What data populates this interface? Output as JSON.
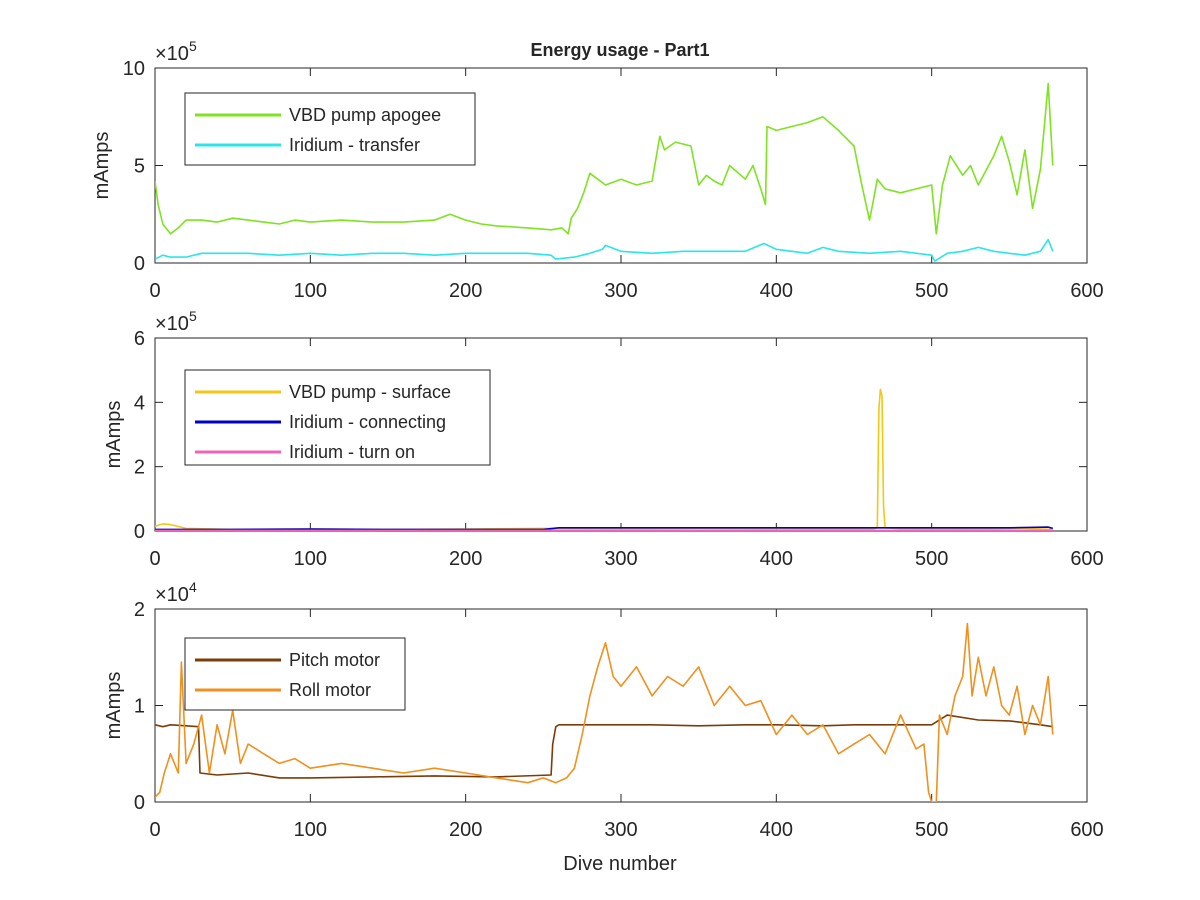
{
  "figure": {
    "title": "Energy usage - Part1",
    "xlabel": "Dive number"
  },
  "chart_data": [
    {
      "type": "line",
      "title": "Energy usage - Part1",
      "xlabel": "",
      "ylabel": "mAmps",
      "xlim": [
        0,
        600
      ],
      "ylim": [
        0,
        10
      ],
      "y_exponent_label": "×10",
      "y_exponent": "5",
      "xticks": [
        "0",
        "100",
        "200",
        "300",
        "400",
        "500",
        "600"
      ],
      "yticks": [
        "0",
        "5",
        "10"
      ],
      "legend_position": "top-left",
      "grid": false,
      "series": [
        {
          "name": "VBD pump apogee",
          "color": "#7ee320",
          "x": [
            0,
            2,
            5,
            10,
            15,
            20,
            30,
            40,
            50,
            60,
            70,
            80,
            90,
            100,
            120,
            140,
            160,
            180,
            190,
            200,
            210,
            220,
            240,
            255,
            262,
            266,
            268,
            272,
            276,
            280,
            290,
            300,
            310,
            320,
            325,
            328,
            335,
            345,
            350,
            355,
            360,
            365,
            370,
            380,
            385,
            390,
            393,
            394,
            400,
            410,
            420,
            430,
            440,
            450,
            455,
            460,
            462,
            465,
            470,
            480,
            490,
            500,
            503,
            507,
            512,
            520,
            525,
            530,
            540,
            545,
            550,
            555,
            560,
            565,
            570,
            575,
            578
          ],
          "y": [
            4.2,
            3.0,
            2.0,
            1.5,
            1.8,
            2.2,
            2.2,
            2.1,
            2.3,
            2.2,
            2.1,
            2.0,
            2.2,
            2.1,
            2.2,
            2.1,
            2.1,
            2.2,
            2.5,
            2.2,
            2.0,
            1.9,
            1.8,
            1.7,
            1.8,
            1.5,
            2.3,
            2.8,
            3.6,
            4.6,
            4.0,
            4.3,
            4.0,
            4.2,
            6.5,
            5.8,
            6.2,
            6.0,
            4.0,
            4.5,
            4.2,
            4.0,
            5.0,
            4.3,
            5.0,
            3.8,
            3.0,
            7.0,
            6.8,
            7.0,
            7.2,
            7.5,
            6.8,
            6.0,
            4.0,
            2.2,
            3.0,
            4.3,
            3.8,
            3.6,
            3.8,
            4.0,
            1.5,
            4.0,
            5.5,
            4.5,
            5.0,
            4.0,
            5.5,
            6.5,
            5.2,
            3.5,
            5.8,
            2.8,
            4.8,
            9.2,
            5.0
          ]
        },
        {
          "name": "Iridium - transfer",
          "color": "#2ae6e6",
          "x": [
            0,
            5,
            10,
            20,
            30,
            40,
            60,
            80,
            100,
            120,
            140,
            160,
            180,
            200,
            220,
            240,
            255,
            258,
            270,
            280,
            288,
            290,
            300,
            320,
            340,
            360,
            380,
            392,
            400,
            420,
            430,
            440,
            460,
            480,
            500,
            502,
            510,
            520,
            530,
            540,
            550,
            560,
            570,
            575,
            578
          ],
          "y": [
            0.2,
            0.4,
            0.3,
            0.3,
            0.5,
            0.5,
            0.5,
            0.4,
            0.5,
            0.4,
            0.5,
            0.5,
            0.4,
            0.5,
            0.5,
            0.5,
            0.4,
            0.2,
            0.3,
            0.5,
            0.7,
            0.9,
            0.6,
            0.5,
            0.6,
            0.6,
            0.6,
            1.0,
            0.7,
            0.5,
            0.8,
            0.6,
            0.5,
            0.6,
            0.4,
            0.1,
            0.5,
            0.6,
            0.8,
            0.6,
            0.5,
            0.4,
            0.6,
            1.2,
            0.6
          ]
        }
      ]
    },
    {
      "type": "line",
      "title": "",
      "xlabel": "",
      "ylabel": "mAmps",
      "xlim": [
        0,
        600
      ],
      "ylim": [
        0,
        6
      ],
      "y_exponent_label": "×10",
      "y_exponent": "5",
      "xticks": [
        "0",
        "100",
        "200",
        "300",
        "400",
        "500",
        "600"
      ],
      "yticks": [
        "0",
        "2",
        "4",
        "6"
      ],
      "legend_position": "top-left",
      "grid": false,
      "series": [
        {
          "name": "VBD pump - surface",
          "color": "#f2c814",
          "x": [
            0,
            5,
            10,
            20,
            50,
            100,
            150,
            200,
            250,
            300,
            350,
            400,
            450,
            462,
            465,
            466,
            467,
            468,
            469,
            470,
            480,
            520,
            560,
            578
          ],
          "y": [
            0.15,
            0.22,
            0.2,
            0.08,
            0.05,
            0.06,
            0.05,
            0.06,
            0.08,
            0.07,
            0.08,
            0.07,
            0.06,
            0.06,
            0.1,
            3.8,
            4.4,
            4.2,
            0.8,
            0.1,
            0.07,
            0.06,
            0.08,
            0.05
          ]
        },
        {
          "name": "Iridium - connecting",
          "color": "#0000c8",
          "x": [
            0,
            50,
            100,
            150,
            200,
            250,
            260,
            300,
            350,
            400,
            450,
            500,
            550,
            575,
            578
          ],
          "y": [
            0.05,
            0.05,
            0.06,
            0.05,
            0.05,
            0.05,
            0.1,
            0.1,
            0.1,
            0.1,
            0.1,
            0.1,
            0.1,
            0.12,
            0.08
          ]
        },
        {
          "name": "Iridium - turn on",
          "color": "#f064b4",
          "x": [
            0,
            100,
            200,
            300,
            400,
            500,
            578
          ],
          "y": [
            0.02,
            0.02,
            0.02,
            0.02,
            0.02,
            0.02,
            0.02
          ]
        }
      ]
    },
    {
      "type": "line",
      "title": "",
      "xlabel": "Dive number",
      "ylabel": "mAmps",
      "xlim": [
        0,
        600
      ],
      "ylim": [
        0,
        2
      ],
      "y_exponent_label": "×10",
      "y_exponent": "4",
      "xticks": [
        "0",
        "100",
        "200",
        "300",
        "400",
        "500",
        "600"
      ],
      "yticks": [
        "0",
        "1",
        "2"
      ],
      "legend_position": "top-left",
      "grid": false,
      "series": [
        {
          "name": "Pitch motor",
          "color": "#7a3d0a",
          "x": [
            0,
            5,
            10,
            20,
            28,
            29,
            40,
            60,
            80,
            100,
            140,
            180,
            220,
            255,
            256,
            258,
            260,
            280,
            300,
            320,
            350,
            380,
            400,
            430,
            450,
            480,
            500,
            510,
            530,
            550,
            570,
            578
          ],
          "y": [
            0.8,
            0.78,
            0.8,
            0.79,
            0.78,
            0.3,
            0.28,
            0.3,
            0.25,
            0.25,
            0.26,
            0.27,
            0.26,
            0.28,
            0.6,
            0.78,
            0.8,
            0.8,
            0.8,
            0.8,
            0.79,
            0.8,
            0.8,
            0.79,
            0.8,
            0.8,
            0.8,
            0.9,
            0.85,
            0.84,
            0.8,
            0.78
          ]
        },
        {
          "name": "Roll motor",
          "color": "#f0901e",
          "x": [
            0,
            3,
            6,
            10,
            15,
            17,
            20,
            25,
            30,
            35,
            40,
            45,
            50,
            55,
            60,
            70,
            80,
            90,
            100,
            120,
            140,
            160,
            180,
            200,
            220,
            240,
            250,
            258,
            265,
            270,
            275,
            280,
            285,
            290,
            295,
            300,
            310,
            320,
            330,
            340,
            350,
            360,
            370,
            380,
            390,
            400,
            410,
            420,
            430,
            440,
            450,
            460,
            470,
            480,
            490,
            495,
            498,
            500,
            503,
            505,
            510,
            515,
            520,
            523,
            526,
            530,
            535,
            540,
            545,
            550,
            555,
            560,
            565,
            570,
            575,
            578
          ],
          "y": [
            0.05,
            0.1,
            0.3,
            0.5,
            0.3,
            1.45,
            0.4,
            0.6,
            0.9,
            0.3,
            0.8,
            0.5,
            0.95,
            0.4,
            0.6,
            0.5,
            0.4,
            0.45,
            0.35,
            0.4,
            0.35,
            0.3,
            0.35,
            0.3,
            0.25,
            0.2,
            0.25,
            0.2,
            0.25,
            0.35,
            0.7,
            1.1,
            1.4,
            1.65,
            1.3,
            1.2,
            1.4,
            1.1,
            1.3,
            1.2,
            1.4,
            1.0,
            1.2,
            1.0,
            1.05,
            0.7,
            0.9,
            0.7,
            0.8,
            0.5,
            0.6,
            0.7,
            0.5,
            0.9,
            0.55,
            0.6,
            0.1,
            0.0,
            0.0,
            0.9,
            0.7,
            1.1,
            1.3,
            1.85,
            1.1,
            1.5,
            1.1,
            1.4,
            1.0,
            0.9,
            1.2,
            0.7,
            1.0,
            0.8,
            1.3,
            0.7
          ]
        }
      ]
    }
  ]
}
